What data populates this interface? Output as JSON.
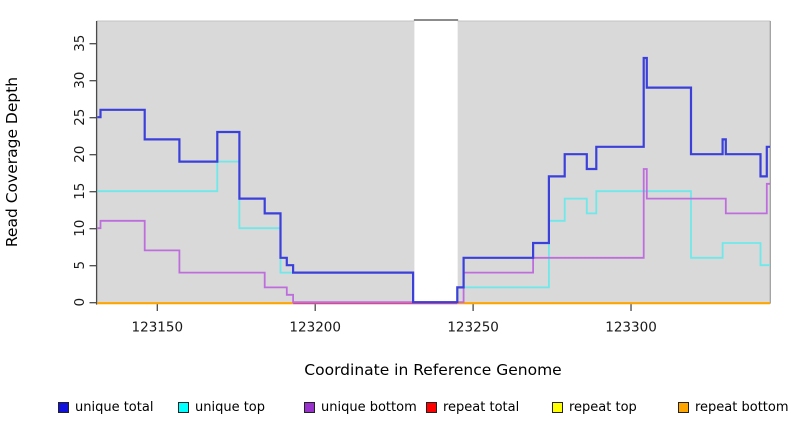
{
  "chart_data": {
    "type": "line",
    "subtype": "step-coverage",
    "title": "",
    "xlabel": "Coordinate in Reference Genome",
    "ylabel": "Read Coverage Depth",
    "xlim": [
      123131,
      123344
    ],
    "ylim": [
      0,
      38
    ],
    "grid": false,
    "plot_bg": "#D9D9D9",
    "x_ticks": [
      123150,
      123200,
      123250,
      123300
    ],
    "x_tick_labels": [
      "123150",
      "123200",
      "123250",
      "123300"
    ],
    "y_ticks": [
      0,
      5,
      10,
      15,
      20,
      25,
      30,
      35
    ],
    "gap_region": {
      "start": 123231.4,
      "end": 123245.1,
      "fill": "#FFFFFF",
      "cap_color": "#8C8C8C"
    },
    "zero_line_segments": [
      {
        "start": 123131,
        "end": 123193,
        "color": "#FFA500"
      },
      {
        "start": 123193,
        "end": 123245,
        "color": "#DC4878"
      },
      {
        "start": 123245,
        "end": 123344,
        "color": "#FFA500"
      }
    ],
    "series": [
      {
        "name": "repeat total",
        "color": "#DC4878",
        "draw": false,
        "points": [
          [
            123131,
            0
          ]
        ]
      },
      {
        "name": "repeat top",
        "color": "#FFFF00",
        "draw": false,
        "points": [
          [
            123131,
            0
          ]
        ]
      },
      {
        "name": "repeat bottom",
        "color": "#FFA500",
        "draw": false,
        "points": [
          [
            123131,
            0
          ]
        ]
      },
      {
        "name": "unique top",
        "color": "#6FE8EA",
        "width": 1.8,
        "points": [
          [
            123131,
            15
          ],
          [
            123169,
            19
          ],
          [
            123176,
            10
          ],
          [
            123189,
            4
          ],
          [
            123231,
            0
          ],
          [
            123245,
            2
          ],
          [
            123274,
            11
          ],
          [
            123279,
            14
          ],
          [
            123286,
            12
          ],
          [
            123289,
            15
          ],
          [
            123319,
            6
          ],
          [
            123329,
            8
          ],
          [
            123341,
            5
          ]
        ]
      },
      {
        "name": "unique bottom",
        "color": "#BE6EDC",
        "width": 1.8,
        "points": [
          [
            123131,
            10
          ],
          [
            123132,
            11
          ],
          [
            123146,
            7
          ],
          [
            123157,
            4
          ],
          [
            123184,
            2
          ],
          [
            123191,
            1
          ],
          [
            123193,
            0
          ],
          [
            123247,
            4
          ],
          [
            123269,
            6
          ],
          [
            123304,
            18
          ],
          [
            123305,
            14
          ],
          [
            123330,
            12
          ],
          [
            123343,
            16
          ]
        ]
      },
      {
        "name": "unique total",
        "color": "#3A40D9",
        "width": 2.2,
        "points": [
          [
            123131,
            25
          ],
          [
            123132,
            26
          ],
          [
            123146,
            22
          ],
          [
            123157,
            19
          ],
          [
            123169,
            23
          ],
          [
            123176,
            14
          ],
          [
            123184,
            12
          ],
          [
            123189,
            6
          ],
          [
            123191,
            5
          ],
          [
            123193,
            4
          ],
          [
            123231,
            0
          ],
          [
            123245,
            2
          ],
          [
            123247,
            6
          ],
          [
            123269,
            8
          ],
          [
            123274,
            17
          ],
          [
            123279,
            20
          ],
          [
            123286,
            18
          ],
          [
            123289,
            21
          ],
          [
            123304,
            33
          ],
          [
            123305,
            29
          ],
          [
            123319,
            20
          ],
          [
            123329,
            22
          ],
          [
            123330,
            20
          ],
          [
            123341,
            17
          ],
          [
            123343,
            21
          ]
        ]
      }
    ],
    "legend_position": "bottom"
  },
  "axes": {
    "x_title": "Coordinate in Reference Genome",
    "y_title": "Read Coverage Depth"
  },
  "legend": {
    "items": [
      {
        "label": "unique total",
        "color": "#1111DD"
      },
      {
        "label": "unique top",
        "color": "#00FFFF"
      },
      {
        "label": "unique bottom",
        "color": "#9932CC"
      },
      {
        "label": "repeat total",
        "color": "#FF0000"
      },
      {
        "label": "repeat top",
        "color": "#FFFF00"
      },
      {
        "label": "repeat bottom",
        "color": "#FFA500"
      }
    ]
  }
}
